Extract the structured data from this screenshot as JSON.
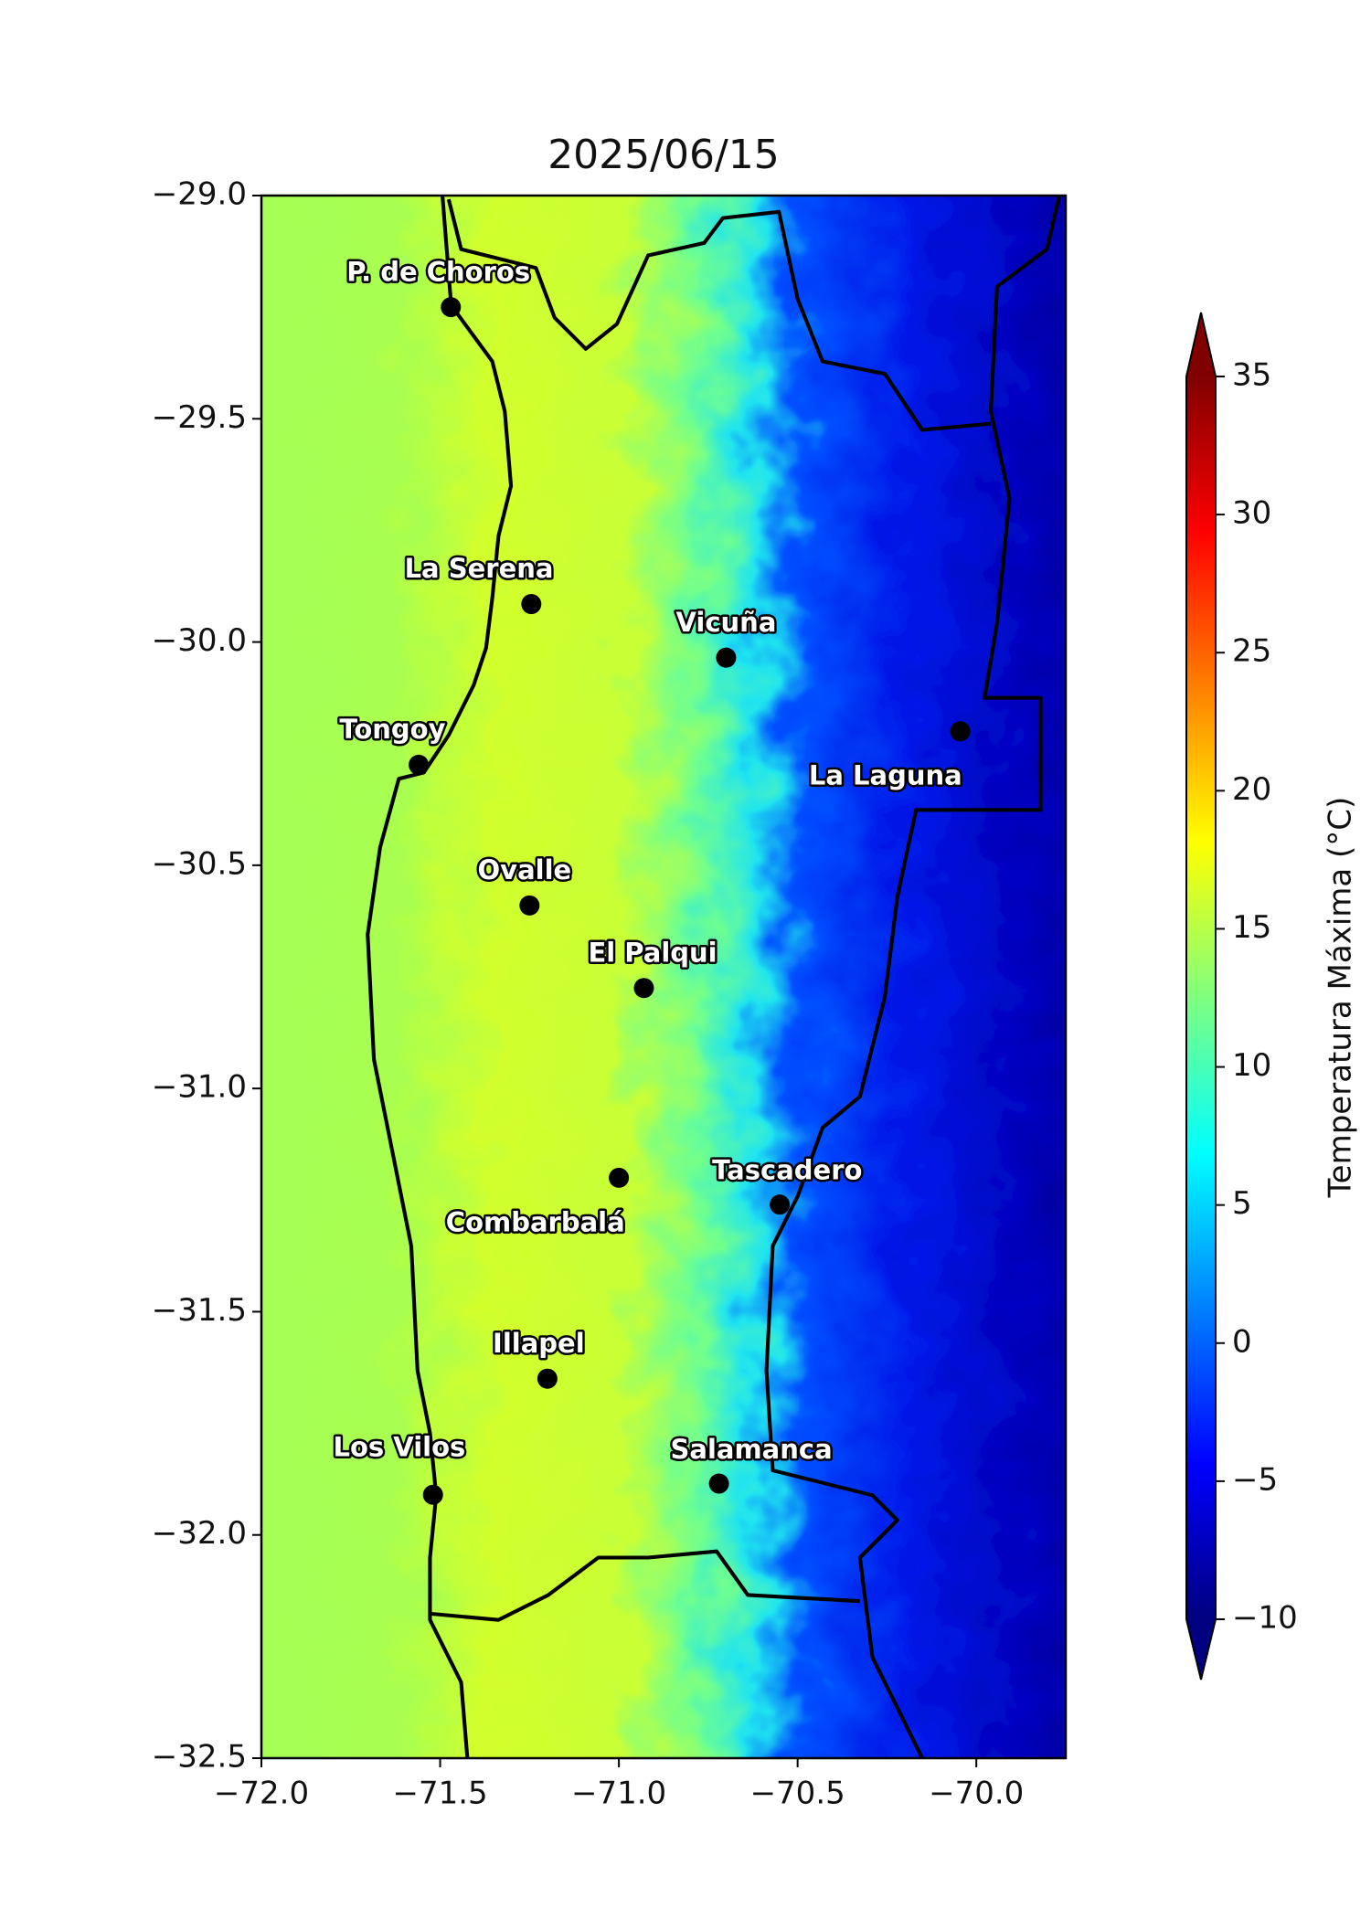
{
  "chart_data": {
    "type": "map",
    "title": "2025/06/15",
    "xlim": [
      -72,
      -69.75
    ],
    "ylim": [
      -32.5,
      -29
    ],
    "xticks": [
      {
        "value": -72,
        "label": "−72.0"
      },
      {
        "value": -71.5,
        "label": "−71.5"
      },
      {
        "value": -71,
        "label": "−71.0"
      },
      {
        "value": -70.5,
        "label": "−70.5"
      },
      {
        "value": -70,
        "label": "−70.0"
      }
    ],
    "yticks": [
      {
        "value": -29,
        "label": "−29.0"
      },
      {
        "value": -29.5,
        "label": "−29.5"
      },
      {
        "value": -30,
        "label": "−30.0"
      },
      {
        "value": -30.5,
        "label": "−30.5"
      },
      {
        "value": -31,
        "label": "−31.0"
      },
      {
        "value": -31.5,
        "label": "−31.5"
      },
      {
        "value": -32,
        "label": "−32.0"
      },
      {
        "value": -32.5,
        "label": "−32.5"
      }
    ],
    "points": [
      {
        "name": "P. de Choros",
        "lon": -71.47,
        "lat": -29.25
      },
      {
        "name": "La Serena",
        "lon": -71.245,
        "lat": -29.915
      },
      {
        "name": "Vicuña",
        "lon": -70.7,
        "lat": -30.035
      },
      {
        "name": "La Laguna",
        "lon": -70.045,
        "lat": -30.2
      },
      {
        "name": "Tongoy",
        "lon": -71.56,
        "lat": -30.275
      },
      {
        "name": "Ovalle",
        "lon": -71.25,
        "lat": -30.59
      },
      {
        "name": "El Palqui",
        "lon": -70.93,
        "lat": -30.775
      },
      {
        "name": "Combarbalá",
        "lon": -71.0,
        "lat": -31.2
      },
      {
        "name": "Tascadero",
        "lon": -70.55,
        "lat": -31.26
      },
      {
        "name": "Illapel",
        "lon": -71.2,
        "lat": -31.65
      },
      {
        "name": "Los Vilos",
        "lon": -71.52,
        "lat": -31.91
      },
      {
        "name": "Salamanca",
        "lon": -70.72,
        "lat": -31.885
      }
    ],
    "colorbar": {
      "label": "Temperatura Máxima (°C)",
      "lim": [
        -10,
        35
      ],
      "ticks": [
        35,
        30,
        25,
        20,
        15,
        10,
        5,
        0,
        {
          "value": -5,
          "label": "−5"
        },
        {
          "value": -10,
          "label": "−10"
        }
      ]
    }
  }
}
